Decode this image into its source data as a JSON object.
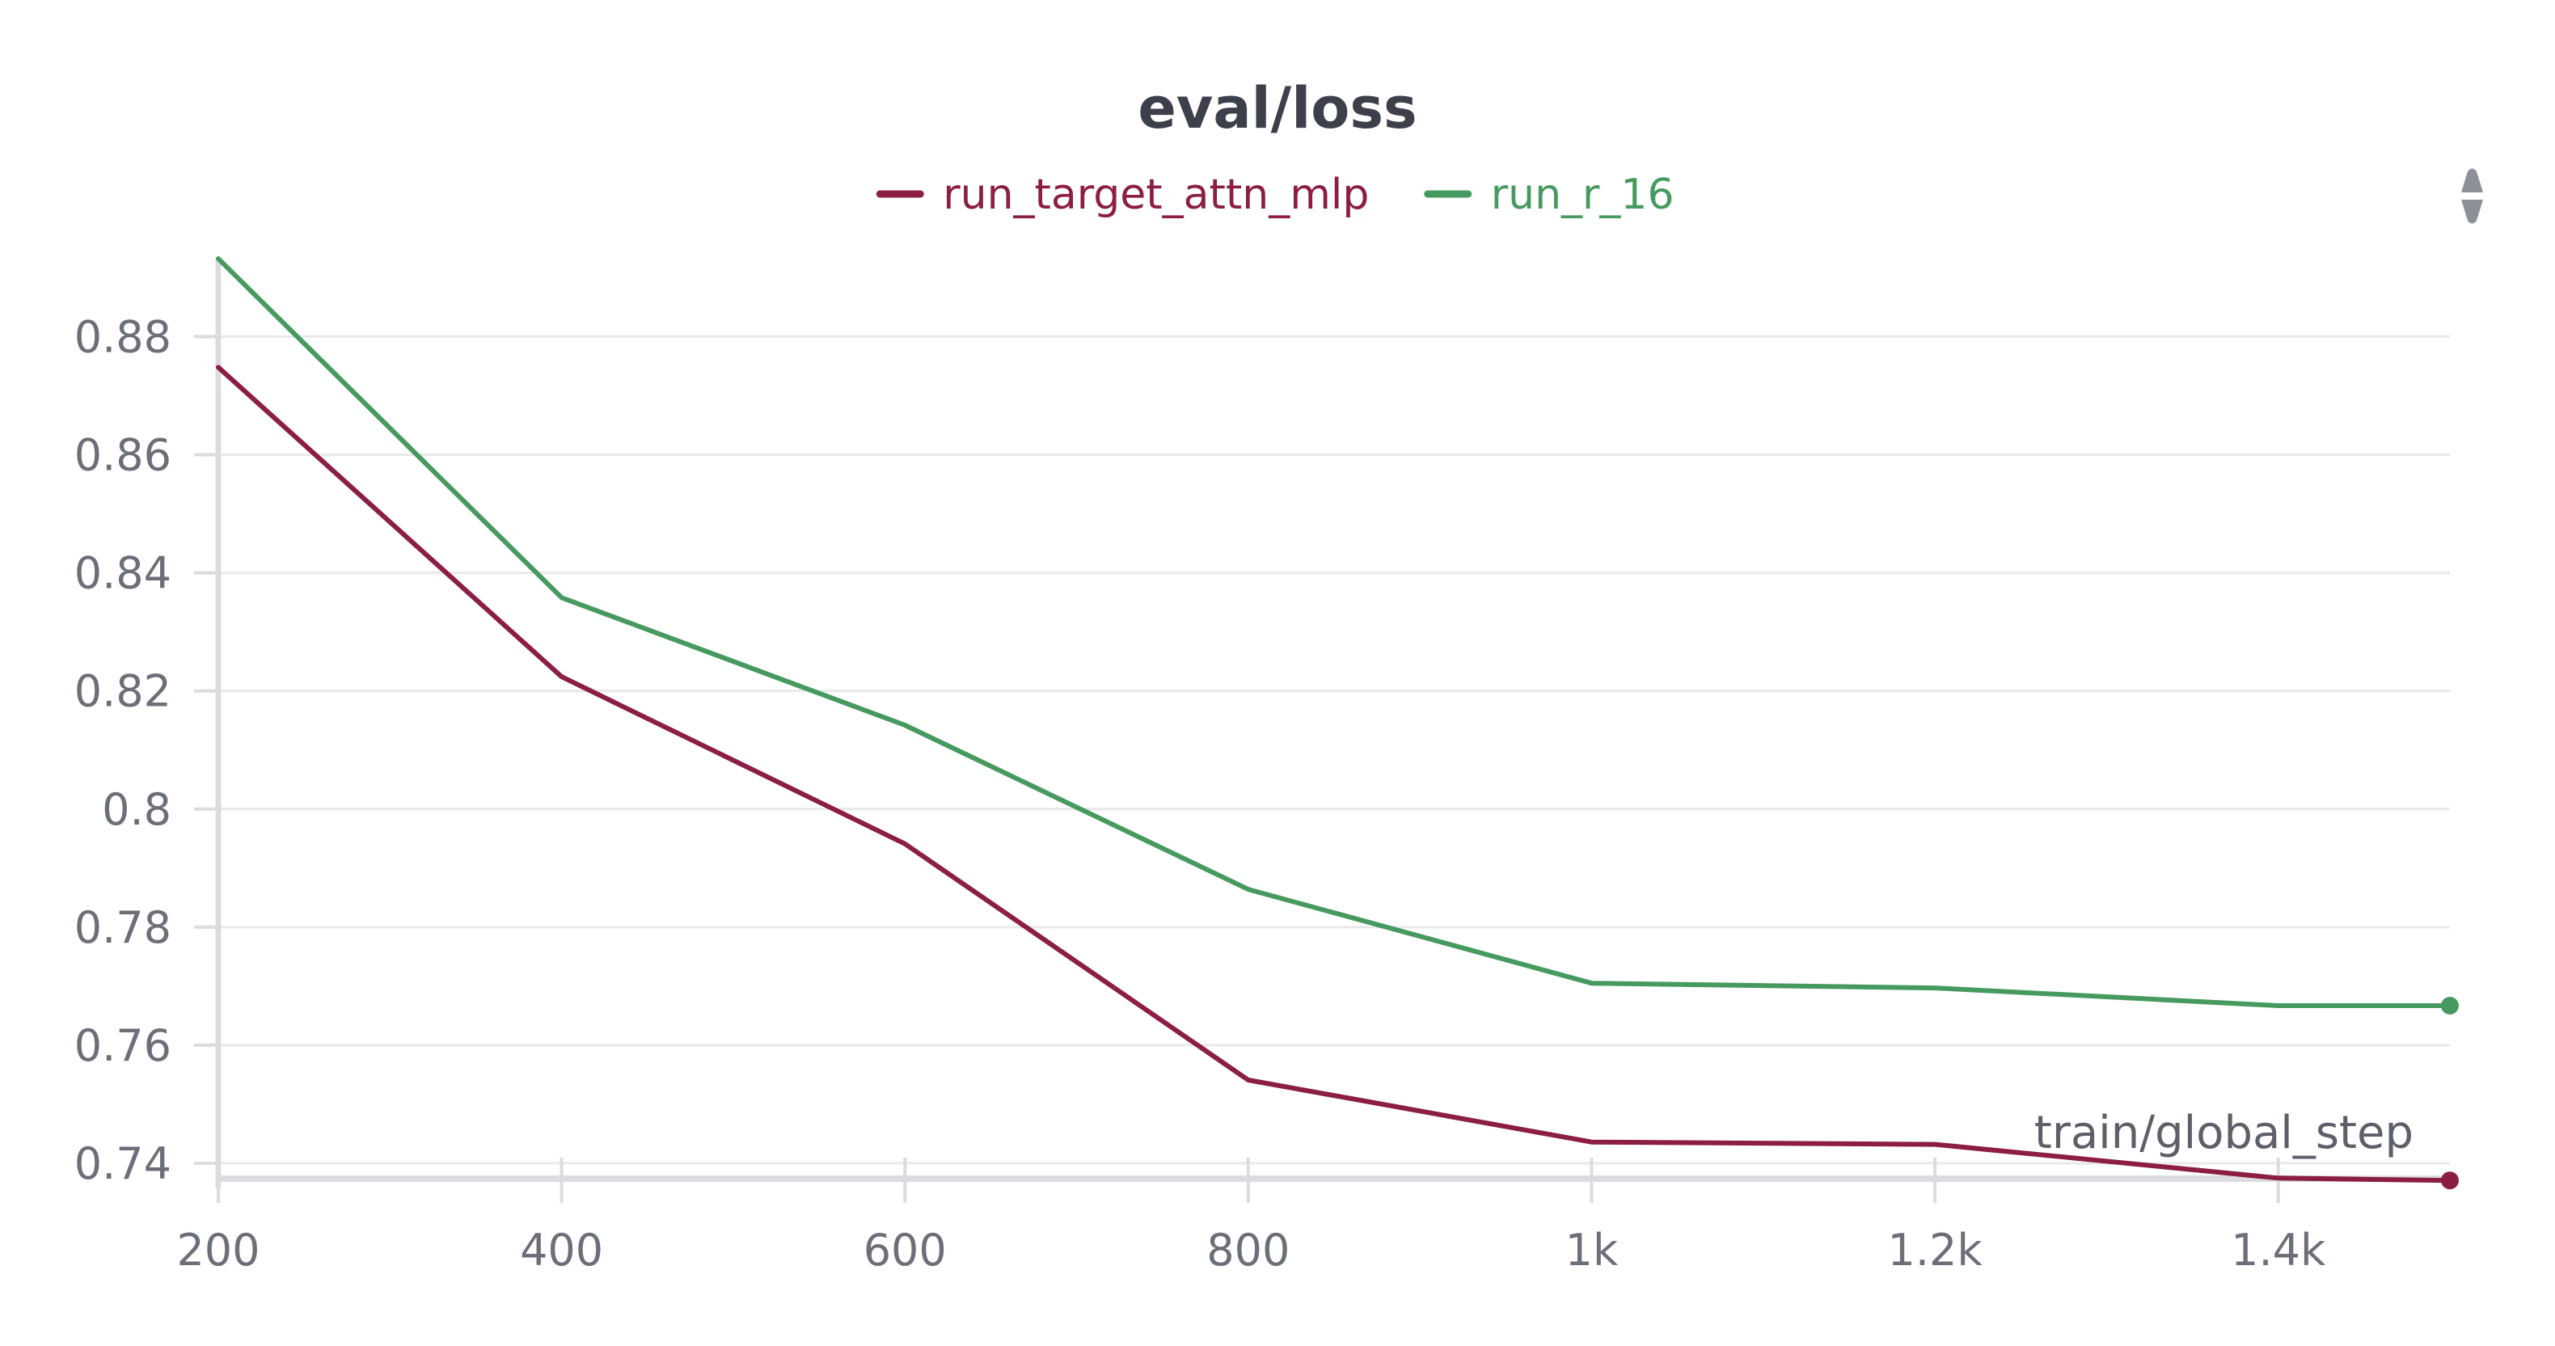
{
  "chart_data": {
    "type": "line",
    "title": "eval/loss",
    "xlabel": "train/global_step",
    "ylabel": "",
    "x_ticks": [
      {
        "value": 200,
        "label": "200"
      },
      {
        "value": 400,
        "label": "400"
      },
      {
        "value": 600,
        "label": "600"
      },
      {
        "value": 800,
        "label": "800"
      },
      {
        "value": 1000,
        "label": "1k"
      },
      {
        "value": 1200,
        "label": "1.2k"
      },
      {
        "value": 1400,
        "label": "1.4k"
      }
    ],
    "y_ticks": [
      {
        "value": 0.74,
        "label": "0.74"
      },
      {
        "value": 0.76,
        "label": "0.76"
      },
      {
        "value": 0.78,
        "label": "0.78"
      },
      {
        "value": 0.8,
        "label": "0.8"
      },
      {
        "value": 0.82,
        "label": "0.82"
      },
      {
        "value": 0.84,
        "label": "0.84"
      },
      {
        "value": 0.86,
        "label": "0.86"
      },
      {
        "value": 0.88,
        "label": "0.88"
      }
    ],
    "xlim": [
      200,
      1500
    ],
    "ylim": [
      0.7374,
      0.8932
    ],
    "grid": "horizontal",
    "legend_position": "top-center",
    "series": [
      {
        "name": "run_target_attn_mlp",
        "color": "#8b1e42",
        "x": [
          200,
          400,
          600,
          800,
          1000,
          1200,
          1400,
          1500
        ],
        "y": [
          0.8748,
          0.8224,
          0.7941,
          0.7541,
          0.7436,
          0.7432,
          0.7375,
          0.7371
        ]
      },
      {
        "name": "run_r_16",
        "color": "#479a5f",
        "x": [
          200,
          400,
          600,
          800,
          1000,
          1200,
          1400,
          1500
        ],
        "y": [
          0.8932,
          0.8358,
          0.8142,
          0.7864,
          0.7705,
          0.7697,
          0.7667,
          0.7667
        ]
      }
    ]
  },
  "icons": {
    "menu": "drag-handle-icon"
  },
  "colors": {
    "grid": "#e9e9ec",
    "axis": "#dcdce0",
    "menu_icon": "#8e9097"
  }
}
